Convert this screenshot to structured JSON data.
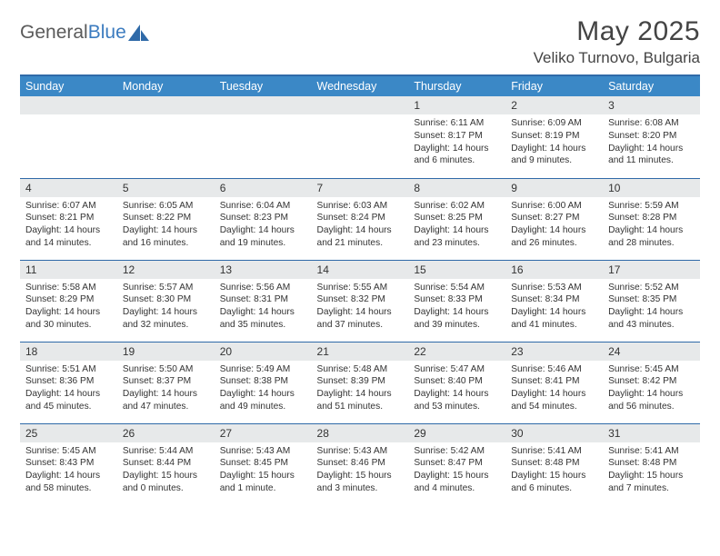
{
  "brand": {
    "part1": "General",
    "part2": "Blue"
  },
  "title": "May 2025",
  "location": "Veliko Turnovo, Bulgaria",
  "colors": {
    "header_bg": "#3b88c6",
    "divider": "#2f6aa8",
    "daynum_bg": "#e7e9ea",
    "text": "#333333",
    "brand_gray": "#5a5a5a",
    "brand_blue": "#3b7bbf"
  },
  "weekdays": [
    "Sunday",
    "Monday",
    "Tuesday",
    "Wednesday",
    "Thursday",
    "Friday",
    "Saturday"
  ],
  "weeks": [
    [
      {
        "blank": true
      },
      {
        "blank": true
      },
      {
        "blank": true
      },
      {
        "blank": true
      },
      {
        "n": "1",
        "sr": "Sunrise: 6:11 AM",
        "ss": "Sunset: 8:17 PM",
        "d1": "Daylight: 14 hours",
        "d2": "and 6 minutes."
      },
      {
        "n": "2",
        "sr": "Sunrise: 6:09 AM",
        "ss": "Sunset: 8:19 PM",
        "d1": "Daylight: 14 hours",
        "d2": "and 9 minutes."
      },
      {
        "n": "3",
        "sr": "Sunrise: 6:08 AM",
        "ss": "Sunset: 8:20 PM",
        "d1": "Daylight: 14 hours",
        "d2": "and 11 minutes."
      }
    ],
    [
      {
        "n": "4",
        "sr": "Sunrise: 6:07 AM",
        "ss": "Sunset: 8:21 PM",
        "d1": "Daylight: 14 hours",
        "d2": "and 14 minutes."
      },
      {
        "n": "5",
        "sr": "Sunrise: 6:05 AM",
        "ss": "Sunset: 8:22 PM",
        "d1": "Daylight: 14 hours",
        "d2": "and 16 minutes."
      },
      {
        "n": "6",
        "sr": "Sunrise: 6:04 AM",
        "ss": "Sunset: 8:23 PM",
        "d1": "Daylight: 14 hours",
        "d2": "and 19 minutes."
      },
      {
        "n": "7",
        "sr": "Sunrise: 6:03 AM",
        "ss": "Sunset: 8:24 PM",
        "d1": "Daylight: 14 hours",
        "d2": "and 21 minutes."
      },
      {
        "n": "8",
        "sr": "Sunrise: 6:02 AM",
        "ss": "Sunset: 8:25 PM",
        "d1": "Daylight: 14 hours",
        "d2": "and 23 minutes."
      },
      {
        "n": "9",
        "sr": "Sunrise: 6:00 AM",
        "ss": "Sunset: 8:27 PM",
        "d1": "Daylight: 14 hours",
        "d2": "and 26 minutes."
      },
      {
        "n": "10",
        "sr": "Sunrise: 5:59 AM",
        "ss": "Sunset: 8:28 PM",
        "d1": "Daylight: 14 hours",
        "d2": "and 28 minutes."
      }
    ],
    [
      {
        "n": "11",
        "sr": "Sunrise: 5:58 AM",
        "ss": "Sunset: 8:29 PM",
        "d1": "Daylight: 14 hours",
        "d2": "and 30 minutes."
      },
      {
        "n": "12",
        "sr": "Sunrise: 5:57 AM",
        "ss": "Sunset: 8:30 PM",
        "d1": "Daylight: 14 hours",
        "d2": "and 32 minutes."
      },
      {
        "n": "13",
        "sr": "Sunrise: 5:56 AM",
        "ss": "Sunset: 8:31 PM",
        "d1": "Daylight: 14 hours",
        "d2": "and 35 minutes."
      },
      {
        "n": "14",
        "sr": "Sunrise: 5:55 AM",
        "ss": "Sunset: 8:32 PM",
        "d1": "Daylight: 14 hours",
        "d2": "and 37 minutes."
      },
      {
        "n": "15",
        "sr": "Sunrise: 5:54 AM",
        "ss": "Sunset: 8:33 PM",
        "d1": "Daylight: 14 hours",
        "d2": "and 39 minutes."
      },
      {
        "n": "16",
        "sr": "Sunrise: 5:53 AM",
        "ss": "Sunset: 8:34 PM",
        "d1": "Daylight: 14 hours",
        "d2": "and 41 minutes."
      },
      {
        "n": "17",
        "sr": "Sunrise: 5:52 AM",
        "ss": "Sunset: 8:35 PM",
        "d1": "Daylight: 14 hours",
        "d2": "and 43 minutes."
      }
    ],
    [
      {
        "n": "18",
        "sr": "Sunrise: 5:51 AM",
        "ss": "Sunset: 8:36 PM",
        "d1": "Daylight: 14 hours",
        "d2": "and 45 minutes."
      },
      {
        "n": "19",
        "sr": "Sunrise: 5:50 AM",
        "ss": "Sunset: 8:37 PM",
        "d1": "Daylight: 14 hours",
        "d2": "and 47 minutes."
      },
      {
        "n": "20",
        "sr": "Sunrise: 5:49 AM",
        "ss": "Sunset: 8:38 PM",
        "d1": "Daylight: 14 hours",
        "d2": "and 49 minutes."
      },
      {
        "n": "21",
        "sr": "Sunrise: 5:48 AM",
        "ss": "Sunset: 8:39 PM",
        "d1": "Daylight: 14 hours",
        "d2": "and 51 minutes."
      },
      {
        "n": "22",
        "sr": "Sunrise: 5:47 AM",
        "ss": "Sunset: 8:40 PM",
        "d1": "Daylight: 14 hours",
        "d2": "and 53 minutes."
      },
      {
        "n": "23",
        "sr": "Sunrise: 5:46 AM",
        "ss": "Sunset: 8:41 PM",
        "d1": "Daylight: 14 hours",
        "d2": "and 54 minutes."
      },
      {
        "n": "24",
        "sr": "Sunrise: 5:45 AM",
        "ss": "Sunset: 8:42 PM",
        "d1": "Daylight: 14 hours",
        "d2": "and 56 minutes."
      }
    ],
    [
      {
        "n": "25",
        "sr": "Sunrise: 5:45 AM",
        "ss": "Sunset: 8:43 PM",
        "d1": "Daylight: 14 hours",
        "d2": "and 58 minutes."
      },
      {
        "n": "26",
        "sr": "Sunrise: 5:44 AM",
        "ss": "Sunset: 8:44 PM",
        "d1": "Daylight: 15 hours",
        "d2": "and 0 minutes."
      },
      {
        "n": "27",
        "sr": "Sunrise: 5:43 AM",
        "ss": "Sunset: 8:45 PM",
        "d1": "Daylight: 15 hours",
        "d2": "and 1 minute."
      },
      {
        "n": "28",
        "sr": "Sunrise: 5:43 AM",
        "ss": "Sunset: 8:46 PM",
        "d1": "Daylight: 15 hours",
        "d2": "and 3 minutes."
      },
      {
        "n": "29",
        "sr": "Sunrise: 5:42 AM",
        "ss": "Sunset: 8:47 PM",
        "d1": "Daylight: 15 hours",
        "d2": "and 4 minutes."
      },
      {
        "n": "30",
        "sr": "Sunrise: 5:41 AM",
        "ss": "Sunset: 8:48 PM",
        "d1": "Daylight: 15 hours",
        "d2": "and 6 minutes."
      },
      {
        "n": "31",
        "sr": "Sunrise: 5:41 AM",
        "ss": "Sunset: 8:48 PM",
        "d1": "Daylight: 15 hours",
        "d2": "and 7 minutes."
      }
    ]
  ]
}
